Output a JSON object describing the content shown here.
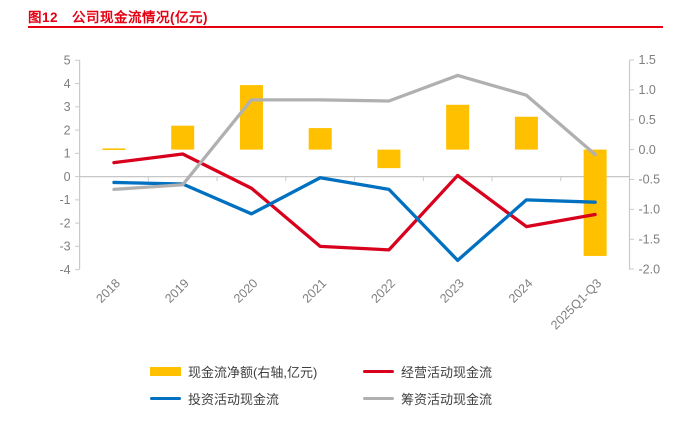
{
  "header": {
    "fig_label": "图12",
    "title": "公司现金流情况(亿元)"
  },
  "colors": {
    "title_red": "#e60012",
    "bar_yellow": "#ffc000",
    "operating_red": "#d9001d",
    "investing_blue": "#0070c0",
    "financing_gray": "#b0b0b0",
    "axis_text": "#7f7f7f",
    "axis_line": "#c9c9c9"
  },
  "chart_data": {
    "type": "combo-bar-line",
    "title": "公司现金流情况(亿元)",
    "categories": [
      "2018",
      "2019",
      "2020",
      "2021",
      "2022",
      "2023",
      "2024",
      "2025Q1-Q3"
    ],
    "left_axis": {
      "min": -4,
      "max": 5,
      "tick_labels": [
        "5",
        "4",
        "3",
        "2",
        "1",
        "0",
        "-1",
        "-2",
        "-3",
        "-4"
      ]
    },
    "right_axis": {
      "min": -2.0,
      "max": 1.5,
      "tick_labels": [
        "1.5",
        "1.0",
        "0.5",
        "0.0",
        "-0.5",
        "-1.0",
        "-1.5",
        "-2.0"
      ]
    },
    "grid": "zero-line-only",
    "legend_position": "bottom",
    "series": [
      {
        "name": "现金流净额(右轴,亿元)",
        "type": "bar",
        "axis": "right",
        "color": "#ffc000",
        "values": [
          0.02,
          0.4,
          1.08,
          0.36,
          -0.31,
          0.75,
          0.55,
          -1.78
        ]
      },
      {
        "name": "经营活动现金流",
        "type": "line",
        "axis": "left",
        "color": "#d9001d",
        "values": [
          0.6,
          0.97,
          -0.5,
          -3.0,
          -3.15,
          0.05,
          -2.15,
          -1.63
        ]
      },
      {
        "name": "投资活动现金流",
        "type": "line",
        "axis": "left",
        "color": "#0070c0",
        "values": [
          -0.25,
          -0.32,
          -1.6,
          -0.05,
          -0.55,
          -3.6,
          -1.0,
          -1.1
        ]
      },
      {
        "name": "筹资活动现金流",
        "type": "line",
        "axis": "left",
        "color": "#b0b0b0",
        "values": [
          -0.55,
          -0.35,
          3.3,
          3.3,
          3.25,
          4.35,
          3.5,
          0.95
        ]
      }
    ]
  }
}
